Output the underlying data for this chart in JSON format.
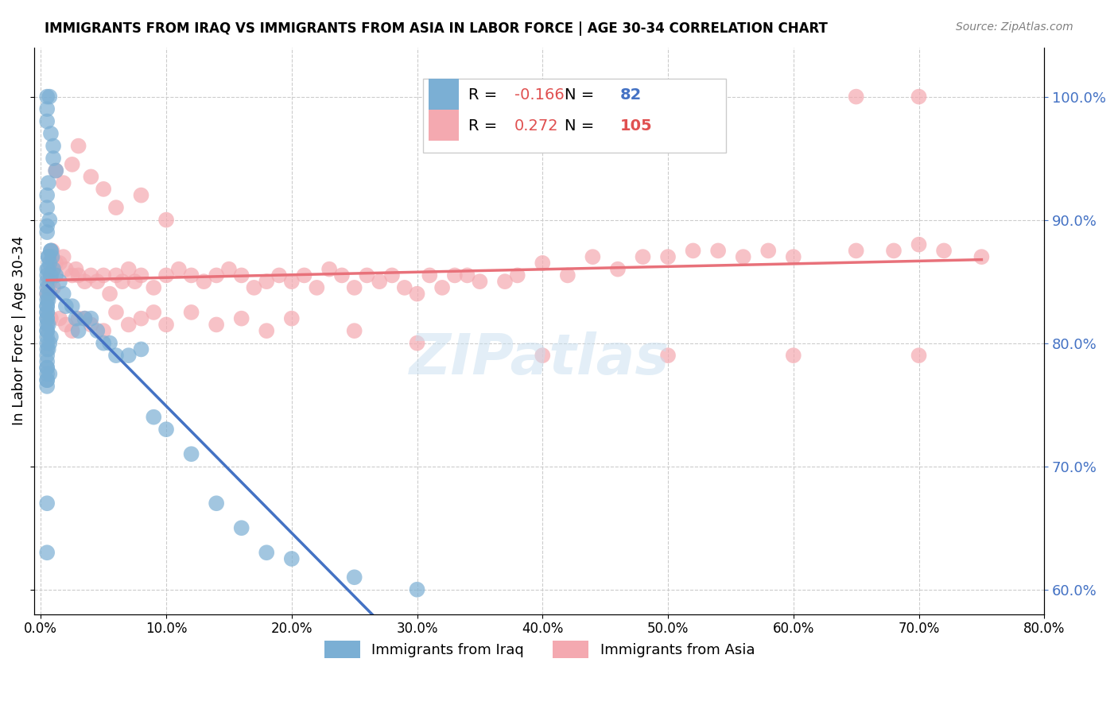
{
  "title": "IMMIGRANTS FROM IRAQ VS IMMIGRANTS FROM ASIA IN LABOR FORCE | AGE 30-34 CORRELATION CHART",
  "source": "Source: ZipAtlas.com",
  "xlabel": "",
  "ylabel": "In Labor Force | Age 30-34",
  "legend_iraq": "Immigrants from Iraq",
  "legend_asia": "Immigrants from Asia",
  "R_iraq": -0.166,
  "N_iraq": 82,
  "R_asia": 0.272,
  "N_asia": 105,
  "xlim": [
    0.0,
    0.8
  ],
  "ylim": [
    0.58,
    1.04
  ],
  "yticks": [
    0.6,
    0.7,
    0.8,
    0.9,
    1.0
  ],
  "xticks": [
    0.0,
    0.1,
    0.2,
    0.3,
    0.4,
    0.5,
    0.6,
    0.7,
    0.8
  ],
  "color_iraq": "#7bafd4",
  "color_asia": "#f4a9b0",
  "trendline_iraq": "#4472c4",
  "trendline_asia": "#e8717a",
  "trendline_dash": "#aacbe8",
  "watermark": "ZIPatlas",
  "iraq_scatter_x": [
    0.005,
    0.005,
    0.007,
    0.005,
    0.008,
    0.01,
    0.01,
    0.012,
    0.006,
    0.005,
    0.005,
    0.007,
    0.005,
    0.005,
    0.008,
    0.006,
    0.005,
    0.005,
    0.005,
    0.005,
    0.007,
    0.006,
    0.005,
    0.005,
    0.005,
    0.006,
    0.005,
    0.008,
    0.007,
    0.006,
    0.005,
    0.005,
    0.005,
    0.007,
    0.005,
    0.01,
    0.012,
    0.015,
    0.018,
    0.02,
    0.025,
    0.028,
    0.03,
    0.035,
    0.04,
    0.045,
    0.05,
    0.055,
    0.06,
    0.07,
    0.08,
    0.09,
    0.1,
    0.12,
    0.14,
    0.16,
    0.18,
    0.2,
    0.25,
    0.3,
    0.008,
    0.009,
    0.006,
    0.007,
    0.006,
    0.008,
    0.005,
    0.005,
    0.005,
    0.005,
    0.005,
    0.005,
    0.005,
    0.005,
    0.005,
    0.005,
    0.005,
    0.005,
    0.005,
    0.005,
    0.005,
    0.005
  ],
  "iraq_scatter_y": [
    1.0,
    0.99,
    1.0,
    0.98,
    0.97,
    0.95,
    0.96,
    0.94,
    0.93,
    0.92,
    0.91,
    0.9,
    0.895,
    0.89,
    0.875,
    0.87,
    0.86,
    0.855,
    0.85,
    0.845,
    0.84,
    0.835,
    0.83,
    0.825,
    0.82,
    0.815,
    0.81,
    0.805,
    0.8,
    0.795,
    0.79,
    0.785,
    0.78,
    0.775,
    0.77,
    0.86,
    0.855,
    0.85,
    0.84,
    0.83,
    0.83,
    0.82,
    0.81,
    0.82,
    0.82,
    0.81,
    0.8,
    0.8,
    0.79,
    0.79,
    0.795,
    0.74,
    0.73,
    0.71,
    0.67,
    0.65,
    0.63,
    0.625,
    0.61,
    0.6,
    0.875,
    0.87,
    0.87,
    0.865,
    0.86,
    0.855,
    0.84,
    0.835,
    0.83,
    0.825,
    0.82,
    0.815,
    0.81,
    0.805,
    0.8,
    0.795,
    0.78,
    0.775,
    0.77,
    0.765,
    0.67,
    0.63
  ],
  "asia_scatter_x": [
    0.005,
    0.006,
    0.007,
    0.008,
    0.01,
    0.012,
    0.015,
    0.018,
    0.02,
    0.025,
    0.028,
    0.03,
    0.035,
    0.04,
    0.045,
    0.05,
    0.055,
    0.06,
    0.065,
    0.07,
    0.075,
    0.08,
    0.09,
    0.1,
    0.11,
    0.12,
    0.13,
    0.14,
    0.15,
    0.16,
    0.17,
    0.18,
    0.19,
    0.2,
    0.21,
    0.22,
    0.23,
    0.24,
    0.25,
    0.26,
    0.27,
    0.28,
    0.29,
    0.3,
    0.31,
    0.32,
    0.33,
    0.34,
    0.35,
    0.37,
    0.38,
    0.4,
    0.42,
    0.44,
    0.46,
    0.48,
    0.5,
    0.52,
    0.54,
    0.56,
    0.58,
    0.6,
    0.65,
    0.68,
    0.7,
    0.72,
    0.75,
    0.007,
    0.008,
    0.009,
    0.01,
    0.015,
    0.02,
    0.025,
    0.03,
    0.035,
    0.04,
    0.05,
    0.06,
    0.07,
    0.08,
    0.09,
    0.1,
    0.12,
    0.14,
    0.16,
    0.18,
    0.2,
    0.25,
    0.3,
    0.4,
    0.5,
    0.6,
    0.7,
    0.65,
    0.7,
    0.012,
    0.018,
    0.025,
    0.03,
    0.04,
    0.05,
    0.06,
    0.08,
    0.1
  ],
  "asia_scatter_y": [
    0.84,
    0.845,
    0.85,
    0.855,
    0.86,
    0.865,
    0.865,
    0.87,
    0.86,
    0.855,
    0.86,
    0.855,
    0.85,
    0.855,
    0.85,
    0.855,
    0.84,
    0.855,
    0.85,
    0.86,
    0.85,
    0.855,
    0.845,
    0.855,
    0.86,
    0.855,
    0.85,
    0.855,
    0.86,
    0.855,
    0.845,
    0.85,
    0.855,
    0.85,
    0.855,
    0.845,
    0.86,
    0.855,
    0.845,
    0.855,
    0.85,
    0.855,
    0.845,
    0.84,
    0.855,
    0.845,
    0.855,
    0.855,
    0.85,
    0.85,
    0.855,
    0.865,
    0.855,
    0.87,
    0.86,
    0.87,
    0.87,
    0.875,
    0.875,
    0.87,
    0.875,
    0.87,
    0.875,
    0.875,
    0.88,
    0.875,
    0.87,
    0.84,
    0.82,
    0.875,
    0.845,
    0.82,
    0.815,
    0.81,
    0.82,
    0.82,
    0.815,
    0.81,
    0.825,
    0.815,
    0.82,
    0.825,
    0.815,
    0.825,
    0.815,
    0.82,
    0.81,
    0.82,
    0.81,
    0.8,
    0.79,
    0.79,
    0.79,
    0.79,
    1.0,
    1.0,
    0.94,
    0.93,
    0.945,
    0.96,
    0.935,
    0.925,
    0.91,
    0.92,
    0.9
  ]
}
